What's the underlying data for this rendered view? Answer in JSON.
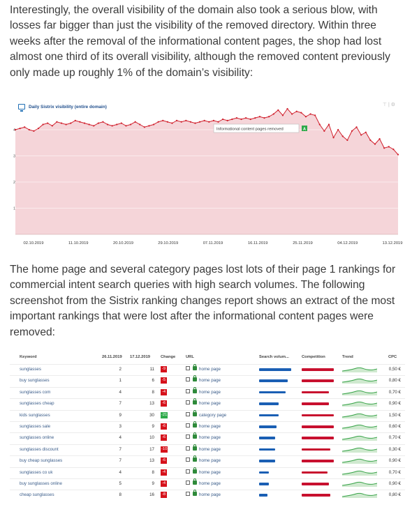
{
  "article": {
    "para1": "Interestingly, the overall visibility of the domain also took a serious blow, with losses far bigger than just the visibility of the removed directory. Within three weeks after the removal of the informational content pages, the shop had lost almost one third of its overall visibility, although the removed content previously only made up roughly 1% of the domain’s visibility:",
    "para2": "The home page and several category pages lost lots of their page 1 rankings for commercial intent search queries with high search volumes. The following screenshot from the Sistrix ranking changes report shows an extract of the most important rankings that were lost after the informational content pages were removed:"
  },
  "chart_data": {
    "type": "area",
    "title": "Daily Sistrix visibility (entire domain)",
    "x_tick_labels": [
      "02.10.2019",
      "11.10.2019",
      "20.10.2019",
      "29.10.2019",
      "07.11.2019",
      "16.11.2019",
      "25.11.2019",
      "04.12.2019",
      "13.12.2019"
    ],
    "y_ticks": [
      "1",
      "2",
      "3",
      "4"
    ],
    "ylim": [
      0,
      4.8
    ],
    "values": [
      4.0,
      4.05,
      4.1,
      4.0,
      3.95,
      4.05,
      4.2,
      4.25,
      4.15,
      4.3,
      4.25,
      4.2,
      4.25,
      4.35,
      4.3,
      4.25,
      4.2,
      4.15,
      4.25,
      4.3,
      4.2,
      4.15,
      4.2,
      4.25,
      4.15,
      4.2,
      4.3,
      4.2,
      4.1,
      4.15,
      4.2,
      4.3,
      4.35,
      4.3,
      4.25,
      4.35,
      4.3,
      4.35,
      4.3,
      4.25,
      4.3,
      4.35,
      4.3,
      4.35,
      4.3,
      4.4,
      4.35,
      4.4,
      4.45,
      4.4,
      4.45,
      4.4,
      4.45,
      4.5,
      4.45,
      4.5,
      4.6,
      4.75,
      4.55,
      4.8,
      4.6,
      4.7,
      4.65,
      4.5,
      4.6,
      4.55,
      4.2,
      3.95,
      4.2,
      3.7,
      4.0,
      3.75,
      3.6,
      3.95,
      4.1,
      3.8,
      3.9,
      3.6,
      3.45,
      3.65,
      3.3,
      3.35,
      3.25,
      3.05
    ],
    "annotation": "Informational content pages removed",
    "annotation_marker": "A",
    "fill_color": "#f5d5d9",
    "line_color": "#d01f2c",
    "grid": true
  },
  "chart_ui": {
    "tools": "⊤ | ⚙"
  },
  "ranking_table": {
    "columns": [
      "Keyword",
      "26.11.2019",
      "17.12.2019",
      "Change",
      "URL",
      "Search volum...",
      "Competition",
      "Trend",
      "CPC"
    ],
    "rows": [
      {
        "keyword": "sunglasses",
        "pos_before": "2",
        "pos_after": "11",
        "change": "-9",
        "change_type": "neg",
        "url": "home page",
        "search_volume": 1.0,
        "competition": 1.0,
        "cpc": "0,50 €"
      },
      {
        "keyword": "buy sunglasses",
        "pos_before": "1",
        "pos_after": "6",
        "change": "-5",
        "change_type": "neg",
        "url": "home page",
        "search_volume": 0.9,
        "competition": 1.0,
        "cpc": "0,80 €"
      },
      {
        "keyword": "sunglasses com",
        "pos_before": "4",
        "pos_after": "8",
        "change": "-4",
        "change_type": "neg",
        "url": "home page",
        "search_volume": 0.82,
        "competition": 0.85,
        "cpc": "0,70 €"
      },
      {
        "keyword": "sunglasses cheap",
        "pos_before": "7",
        "pos_after": "13",
        "change": "-6",
        "change_type": "neg",
        "url": "home page",
        "search_volume": 0.6,
        "competition": 0.85,
        "cpc": "0,90 €"
      },
      {
        "keyword": "kids sunglasses",
        "pos_before": "9",
        "pos_after": "30",
        "change": "-21",
        "change_type": "pos",
        "url": "category page",
        "search_volume": 0.6,
        "competition": 1.0,
        "cpc": "1,50 €"
      },
      {
        "keyword": "sunglasses sale",
        "pos_before": "3",
        "pos_after": "9",
        "change": "-6",
        "change_type": "neg",
        "url": "home page",
        "search_volume": 0.55,
        "competition": 1.0,
        "cpc": "0,60 €"
      },
      {
        "keyword": "sunglasses online",
        "pos_before": "4",
        "pos_after": "10",
        "change": "-6",
        "change_type": "neg",
        "url": "home page",
        "search_volume": 0.5,
        "competition": 1.0,
        "cpc": "0,70 €"
      },
      {
        "keyword": "sunglasses discount",
        "pos_before": "7",
        "pos_after": "17",
        "change": "-10",
        "change_type": "neg",
        "url": "home page",
        "search_volume": 0.5,
        "competition": 0.9,
        "cpc": "0,30 €"
      },
      {
        "keyword": "buy cheap sunglasses",
        "pos_before": "7",
        "pos_after": "13",
        "change": "-6",
        "change_type": "neg",
        "url": "home page",
        "search_volume": 0.5,
        "competition": 1.0,
        "cpc": "0,90 €"
      },
      {
        "keyword": "sunglasses co uk",
        "pos_before": "4",
        "pos_after": "8",
        "change": "-4",
        "change_type": "neg",
        "url": "home page",
        "search_volume": 0.3,
        "competition": 0.8,
        "cpc": "0,70 €"
      },
      {
        "keyword": "buy sunglasses online",
        "pos_before": "5",
        "pos_after": "9",
        "change": "-4",
        "change_type": "neg",
        "url": "home page",
        "search_volume": 0.3,
        "competition": 0.85,
        "cpc": "0,90 €"
      },
      {
        "keyword": "cheap sunglasses",
        "pos_before": "8",
        "pos_after": "16",
        "change": "-8",
        "change_type": "neg",
        "url": "home page",
        "search_volume": 0.25,
        "competition": 0.9,
        "cpc": "0,80 €"
      }
    ]
  }
}
